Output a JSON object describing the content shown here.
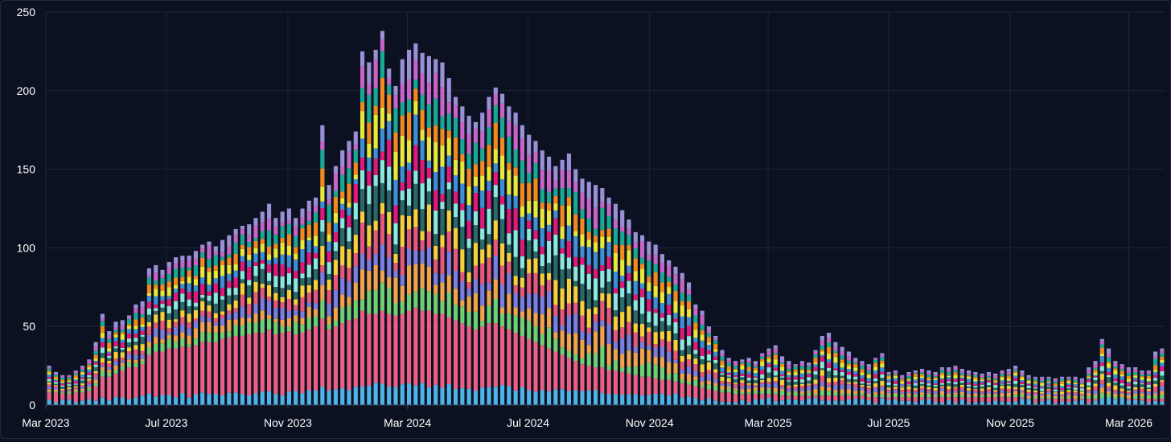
{
  "chart_data": {
    "type": "bar",
    "stacked": true,
    "title": "",
    "xlabel": "",
    "ylabel": "",
    "ylim": [
      0,
      250
    ],
    "y_ticks": [
      "0",
      "50",
      "100",
      "150",
      "200",
      "250"
    ],
    "x_ticks": [
      "Mar 2023",
      "Jul 2023",
      "Nov 2023",
      "Mar 2024",
      "Jul 2024",
      "Nov 2024",
      "Mar 2025",
      "Jul 2025",
      "Nov 2025",
      "Mar 2026"
    ],
    "x_start": "2023-03-01",
    "x_end": "2026-04-07",
    "bar_interval": "weekly",
    "grid": true,
    "legend": "none",
    "segment_colors": [
      "#4fb3e8",
      "#ec5f84",
      "#6fcf73",
      "#f0a34a",
      "#7d7fe0",
      "#e8587a",
      "#f5d03a",
      "#2a6b66",
      "#8ae8dc",
      "#e0197a",
      "#3e8fd6",
      "#e7e83a",
      "#f28a1f",
      "#1aa896",
      "#c764c8",
      "#9b8fd6"
    ],
    "totals": [
      25,
      21,
      19,
      19,
      22,
      25,
      29,
      40,
      58,
      47,
      53,
      54,
      57,
      64,
      66,
      87,
      89,
      86,
      91,
      94,
      95,
      95,
      98,
      102,
      104,
      101,
      105,
      108,
      112,
      114,
      115,
      119,
      123,
      128,
      119,
      123,
      125,
      119,
      125,
      130,
      132,
      178,
      140,
      152,
      162,
      168,
      174,
      225,
      218,
      226,
      238,
      214,
      203,
      220,
      226,
      230,
      224,
      222,
      220,
      218,
      208,
      196,
      190,
      184,
      180,
      186,
      196,
      202,
      198,
      190,
      186,
      178,
      172,
      168,
      162,
      158,
      152,
      156,
      160,
      150,
      144,
      142,
      140,
      138,
      132,
      128,
      124,
      118,
      110,
      108,
      104,
      102,
      96,
      92,
      88,
      84,
      78,
      64,
      60,
      50,
      44,
      35,
      30,
      28,
      29,
      30,
      28,
      33,
      36,
      38,
      31,
      28,
      26,
      28,
      27,
      35,
      44,
      46,
      40,
      37,
      34,
      30,
      28,
      26,
      30,
      33,
      21,
      22,
      19,
      21,
      22,
      23,
      22,
      21,
      24,
      24,
      25,
      23,
      22,
      21,
      20,
      21,
      20,
      22,
      23,
      25,
      22,
      19,
      18,
      18,
      18,
      17,
      18,
      18,
      18,
      17,
      24,
      28,
      42,
      36,
      28,
      26,
      24,
      24,
      22,
      22,
      34,
      36
    ],
    "base_segment_values": [
      8,
      8,
      7,
      7,
      8,
      8,
      9,
      12,
      18,
      18,
      20,
      22,
      24,
      24,
      26,
      32,
      34,
      34,
      36,
      36,
      37,
      37,
      38,
      40,
      40,
      40,
      42,
      43,
      44,
      44,
      45,
      46,
      46,
      48,
      45,
      46,
      47,
      45,
      46,
      48,
      50,
      55,
      48,
      50,
      52,
      54,
      55,
      60,
      58,
      58,
      60,
      58,
      57,
      58,
      60,
      62,
      60,
      60,
      58,
      58,
      56,
      54,
      52,
      50,
      48,
      50,
      52,
      52,
      50,
      48,
      46,
      44,
      42,
      40,
      38,
      36,
      34,
      32,
      30,
      28,
      26,
      25,
      24,
      24,
      22,
      22,
      21,
      20,
      19,
      18,
      18,
      17,
      16,
      16,
      15,
      14,
      13,
      12,
      11,
      10,
      9,
      8,
      8,
      7,
      7,
      7,
      7,
      7,
      7,
      7,
      6,
      6,
      6,
      6,
      6,
      6,
      6,
      6,
      6,
      6,
      6,
      6,
      6,
      5,
      5,
      5,
      5,
      5,
      5,
      5,
      5,
      5,
      5,
      5,
      5,
      5,
      5,
      5,
      5,
      5,
      5,
      5,
      5,
      5,
      5,
      5,
      5,
      4,
      4,
      4,
      4,
      4,
      4,
      4,
      4,
      4,
      4,
      4,
      4,
      4,
      4,
      4,
      4,
      4,
      4,
      4,
      4,
      4
    ]
  }
}
